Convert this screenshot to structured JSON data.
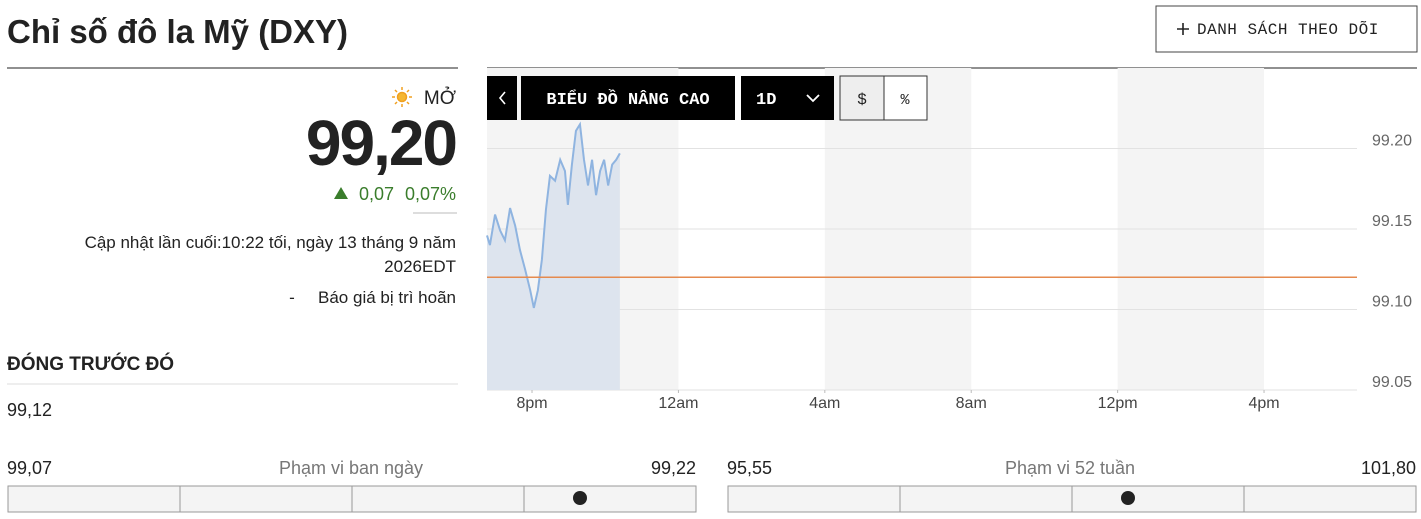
{
  "header": {
    "title": "Chỉ số đô la Mỹ (DXY)",
    "watchlist_button": "DANH SÁCH THEO DÕI"
  },
  "quote": {
    "status": "MỞ",
    "price": "99,20",
    "change": "0,07",
    "change_percent": "0,07%",
    "updated_line1": "Cập nhật lần cuối:10:22 tối, ngày 13 tháng 9 năm",
    "updated_line2": "2026EDT",
    "delay_prefix": "-",
    "delay_note": "Báo giá bị trì hoãn"
  },
  "previous_close": {
    "label": "ĐÓNG TRƯỚC ĐÓ",
    "value": "99,12"
  },
  "toolbar": {
    "advanced": "BIỂU ĐỒ NÂNG CAO",
    "interval": "1D",
    "currency": "$",
    "percent": "%"
  },
  "day_range": {
    "low": "99,07",
    "label": "Phạm vi ban ngày",
    "high": "99,22"
  },
  "week52_range": {
    "low": "95,55",
    "label": "Phạm vi 52 tuần",
    "high": "101,80"
  },
  "chart_data": {
    "type": "line",
    "color": "#8fb4e0",
    "area_color": "#dde4ee",
    "reference_line": {
      "value": 99.12,
      "color": "#e58a4e"
    },
    "x": [
      18.77,
      18.85,
      18.99,
      19.13,
      19.26,
      19.4,
      19.54,
      19.67,
      19.81,
      19.95,
      20.05,
      20.16,
      20.27,
      20.38,
      20.49,
      20.63,
      20.77,
      20.9,
      20.98,
      21.09,
      21.2,
      21.31,
      21.42,
      21.53,
      21.64,
      21.75,
      21.86,
      21.97,
      22.08,
      22.19,
      22.3,
      22.4
    ],
    "values": [
      99.146,
      99.14,
      99.159,
      99.149,
      99.143,
      99.163,
      99.152,
      99.137,
      99.125,
      99.112,
      99.101,
      99.112,
      99.131,
      99.162,
      99.183,
      99.18,
      99.193,
      99.186,
      99.165,
      99.19,
      99.211,
      99.215,
      99.193,
      99.177,
      99.193,
      99.171,
      99.186,
      99.193,
      99.177,
      99.19,
      99.193,
      99.197
    ],
    "xlim": [
      18.77,
      42.54
    ],
    "xticks": [
      {
        "value": 20,
        "label": "8pm"
      },
      {
        "value": 24,
        "label": "12am"
      },
      {
        "value": 28,
        "label": "4am"
      },
      {
        "value": 32,
        "label": "8am"
      },
      {
        "value": 36,
        "label": "12pm"
      },
      {
        "value": 40,
        "label": "4pm"
      }
    ],
    "ylim": [
      99.05,
      99.25
    ],
    "yticks": [
      99.05,
      {
        "value": 99.1,
        "label": "99.10"
      },
      99.15,
      {
        "value": 99.2,
        "label": "99.20"
      }
    ],
    "grid": true
  }
}
